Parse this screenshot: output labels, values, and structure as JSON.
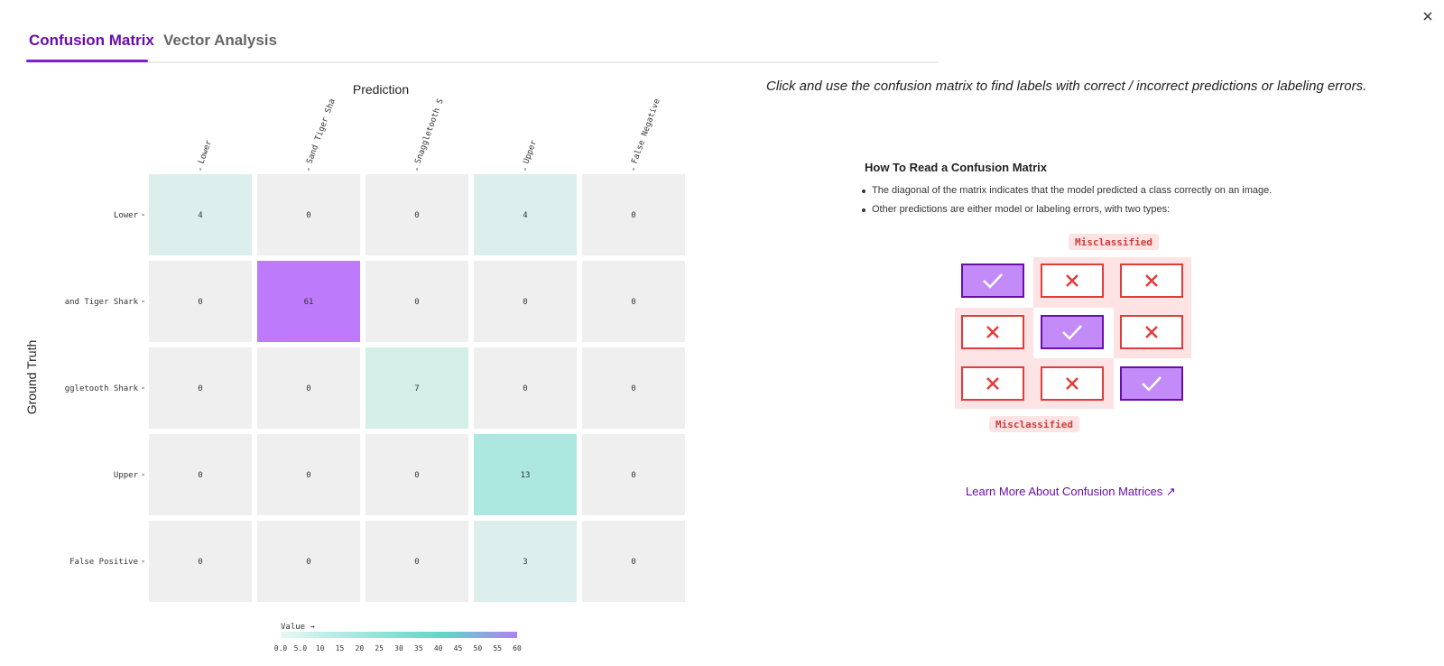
{
  "tabs": [
    {
      "label": "Confusion Matrix",
      "active": true
    },
    {
      "label": "Vector Analysis",
      "active": false
    }
  ],
  "close_icon": "close-icon",
  "matrix": {
    "x_title": "Prediction",
    "y_title": "Ground Truth",
    "x_labels": [
      "Lower",
      "Sand Tiger Sha",
      "Snaggletooth S",
      "Upper",
      "False Negative"
    ],
    "y_labels": [
      "Lower",
      "and Tiger Shark",
      "ggletooth Shark",
      "Upper",
      "False Positive"
    ],
    "values": [
      [
        4,
        0,
        0,
        4,
        0
      ],
      [
        0,
        61,
        0,
        0,
        0
      ],
      [
        0,
        0,
        7,
        0,
        0
      ],
      [
        0,
        0,
        0,
        13,
        0
      ],
      [
        0,
        0,
        0,
        3,
        0
      ]
    ],
    "colors": {
      "empty": "#efefef",
      "low": "#dcefec",
      "mid": "#d4efe8",
      "high": "#ace8e0",
      "max": "#bd7afa"
    },
    "legend": {
      "title": "Value →",
      "ticks": [
        "0.0",
        "5.0",
        "10",
        "15",
        "20",
        "25",
        "30",
        "35",
        "40",
        "45",
        "50",
        "55",
        "60"
      ],
      "gradient": [
        "#e6f7f5",
        "#7fe0d2",
        "#5fd6c6",
        "#b07ff5"
      ]
    }
  },
  "instruction": "Click and use the confusion matrix to find labels with correct / incorrect predictions or labeling errors.",
  "howto": {
    "title": "How To Read a Confusion Matrix",
    "bullets": [
      "The diagonal of the matrix indicates that the model predicted a class correctly on an image.",
      "Other predictions are either model or labeling errors, with two types:"
    ]
  },
  "diagram": {
    "top_label": "Misclassified",
    "bottom_label": "Misclassified",
    "correct_color": "#c28bf7",
    "correct_border": "#6a0dad",
    "error_color": "#e23b3b",
    "highlight_color": "#fde3e3"
  },
  "learn_more": "Learn More About Confusion Matrices ↗"
}
